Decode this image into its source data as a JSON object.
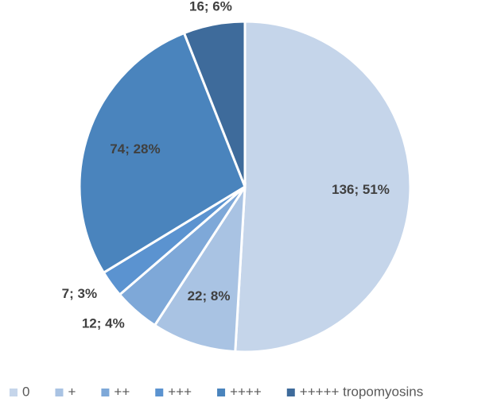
{
  "chart_data": {
    "type": "pie",
    "categories": [
      "0",
      "+",
      "++",
      "+++",
      "++++",
      "+++++ tropomyosins"
    ],
    "values": [
      136,
      22,
      12,
      7,
      74,
      16
    ],
    "value_labels": [
      "136; 51%",
      "22; 8%",
      "12; 4%",
      "7; 3%",
      "74; 28%",
      "16; 6%"
    ],
    "colors": [
      "#c5d5ea",
      "#a9c3e3",
      "#7ea8d8",
      "#5b93d0",
      "#4a84bd",
      "#3e6b9b"
    ],
    "legend": "bottom"
  }
}
